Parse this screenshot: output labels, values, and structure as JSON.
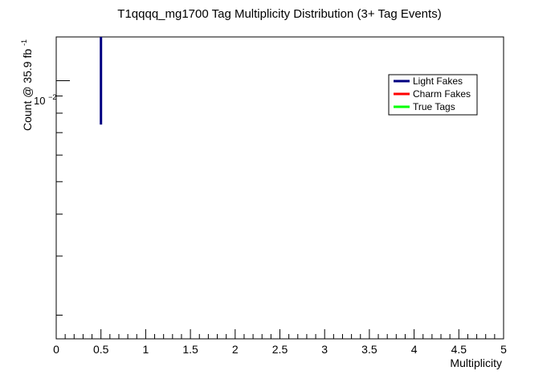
{
  "chart_data": {
    "type": "line",
    "title": "T1qqqq_mg1700 Tag Multiplicity Distribution (3+ Tag Events)",
    "xlabel": "Multiplicity",
    "ylabel": "Count @ 35.9 fb",
    "ylabel_superscript": "-1",
    "xlim": [
      0,
      5
    ],
    "ylim": [
      0.0017,
      0.0135
    ],
    "yscale": "log",
    "grid": false,
    "legend_position": "top-right",
    "x_ticks": [
      "0",
      "0.5",
      "1",
      "1.5",
      "2",
      "2.5",
      "3",
      "3.5",
      "4",
      "4.5",
      "5"
    ],
    "y_tick_label": {
      "base": "10",
      "exponent": "−2"
    },
    "series": [
      {
        "name": "Light Fakes",
        "color": "#000080",
        "x": [
          0.5
        ],
        "y_low": [
          0.0074
        ],
        "y_high": [
          0.0135
        ]
      },
      {
        "name": "Charm Fakes",
        "color": "#ff0000",
        "x": [],
        "y_low": [],
        "y_high": []
      },
      {
        "name": "True Tags",
        "color": "#00ff00",
        "x": [],
        "y_low": [],
        "y_high": []
      }
    ]
  }
}
